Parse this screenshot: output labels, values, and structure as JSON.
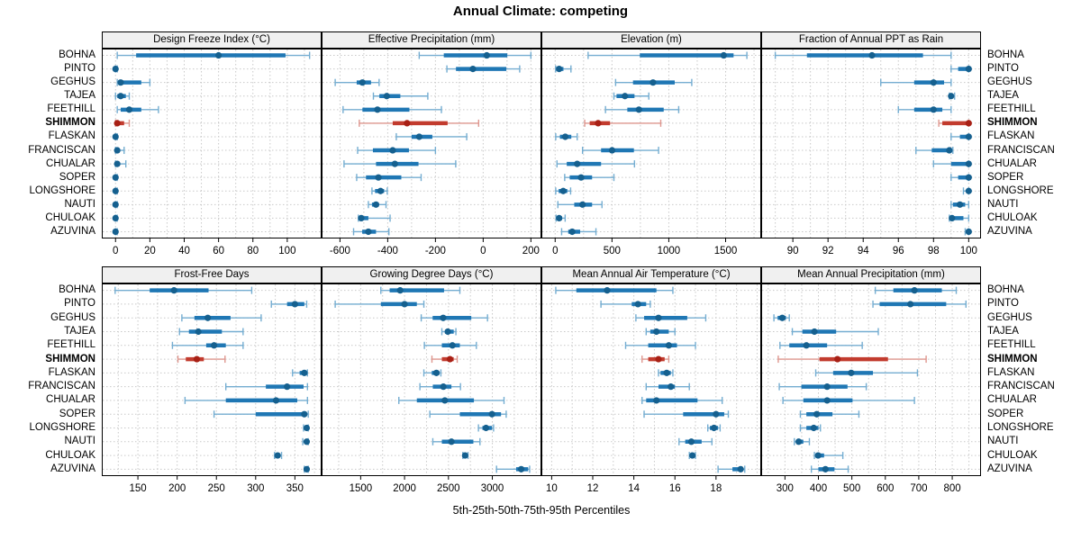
{
  "title": "Annual Climate: competing",
  "xlabel": "5th-25th-50th-75th-95th Percentiles",
  "highlight_site": "SHIMMON",
  "sites": [
    "BOHNA",
    "PINTO",
    "GEGHUS",
    "TAJEA",
    "FEETHILL",
    "SHIMMON",
    "FLASKAN",
    "FRANCISCAN",
    "CHUALAR",
    "SOPER",
    "LONGSHORE",
    "NAUTI",
    "CHULOAK",
    "AZUVINA"
  ],
  "colors": {
    "blue_median": "#15608f",
    "blue_iqr": "#1f77b4",
    "blue_range": "#74add1",
    "red_median": "#a82015",
    "red_iqr": "#c23b2e",
    "red_range": "#de968e",
    "grid": "#c9c9c9",
    "panel_header_bg": "#f0f0f0",
    "border": "#000000"
  },
  "chart_data": {
    "type": "dot-interval",
    "percentiles": [
      "5th",
      "25th",
      "50th",
      "75th",
      "95th"
    ],
    "layout": {
      "rows": 2,
      "cols": 4,
      "grid": "dashed",
      "legend": "none"
    },
    "panels": [
      {
        "title": "Design Freeze Index (°C)",
        "xlim": [
          -8,
          120
        ],
        "ticks": [
          0,
          20,
          40,
          60,
          80,
          100
        ],
        "values": [
          [
            1,
            12,
            60,
            99,
            113
          ],
          [
            0,
            0,
            0,
            0,
            1
          ],
          [
            1,
            2,
            3,
            15,
            20
          ],
          [
            0,
            1,
            3,
            6,
            8
          ],
          [
            1,
            3,
            8,
            15,
            25
          ],
          [
            0,
            0,
            1,
            5,
            8
          ],
          [
            0,
            0,
            0,
            0,
            1
          ],
          [
            0,
            0,
            1,
            2,
            5
          ],
          [
            0,
            0,
            1,
            2,
            6
          ],
          [
            0,
            0,
            0,
            0,
            1
          ],
          [
            0,
            0,
            0,
            0,
            1
          ],
          [
            0,
            0,
            0,
            0,
            1
          ],
          [
            0,
            0,
            0,
            0,
            1
          ],
          [
            0,
            0,
            0,
            0,
            1
          ]
        ]
      },
      {
        "title": "Effective Precipitation (mm)",
        "xlim": [
          -677,
          244
        ],
        "ticks": [
          -600,
          -400,
          -200,
          0,
          200
        ],
        "values": [
          [
            -268,
            -165,
            15,
            101,
            200
          ],
          [
            -152,
            -114,
            -43,
            97,
            153
          ],
          [
            -620,
            -530,
            -506,
            -470,
            -436
          ],
          [
            -460,
            -435,
            -404,
            -347,
            -232
          ],
          [
            -587,
            -506,
            -443,
            -309,
            -175
          ],
          [
            -519,
            -379,
            -319,
            -149,
            -19
          ],
          [
            -364,
            -300,
            -268,
            -213,
            -69
          ],
          [
            -526,
            -462,
            -379,
            -311,
            -200
          ],
          [
            -583,
            -449,
            -370,
            -271,
            -115
          ],
          [
            -530,
            -491,
            -439,
            -343,
            -260
          ],
          [
            -466,
            -453,
            -430,
            -415,
            -402
          ],
          [
            -481,
            -466,
            -449,
            -437,
            -407
          ],
          [
            -523,
            -518,
            -511,
            -481,
            -390
          ],
          [
            -543,
            -507,
            -481,
            -449,
            -395
          ]
        ]
      },
      {
        "title": "Elevation (m)",
        "xlim": [
          -121,
          1813
        ],
        "ticks": [
          0,
          500,
          1000,
          1500
        ],
        "values": [
          [
            290,
            745,
            1483,
            1570,
            1687
          ],
          [
            4,
            10,
            35,
            73,
            139
          ],
          [
            532,
            685,
            861,
            1052,
            1202
          ],
          [
            517,
            540,
            614,
            698,
            824
          ],
          [
            443,
            635,
            737,
            955,
            1087
          ],
          [
            260,
            304,
            378,
            483,
            929
          ],
          [
            5,
            42,
            89,
            142,
            194
          ],
          [
            241,
            404,
            501,
            693,
            910
          ],
          [
            16,
            102,
            194,
            404,
            698
          ],
          [
            84,
            128,
            228,
            325,
            517
          ],
          [
            5,
            31,
            71,
            107,
            136
          ],
          [
            24,
            168,
            241,
            325,
            412
          ],
          [
            8,
            15,
            35,
            60,
            88
          ],
          [
            57,
            115,
            150,
            220,
            359
          ]
        ]
      },
      {
        "title": "Fraction of Annual PPT as Rain",
        "xlim": [
          88.2,
          100.7
        ],
        "ticks": [
          90,
          92,
          94,
          96,
          98,
          100
        ],
        "values": [
          [
            89,
            90.8,
            94.5,
            97.4,
            99
          ],
          [
            99,
            99.4,
            100,
            100,
            100
          ],
          [
            95,
            96.9,
            98,
            98.6,
            99
          ],
          [
            98.9,
            99,
            99,
            99.1,
            99.2
          ],
          [
            96,
            96.9,
            98,
            98.5,
            99
          ],
          [
            98.3,
            98.5,
            100,
            100,
            100
          ],
          [
            99,
            99.5,
            100,
            100,
            100
          ],
          [
            97,
            97.9,
            98.9,
            99,
            99.1
          ],
          [
            98,
            99,
            100,
            100,
            100
          ],
          [
            99,
            99.4,
            100,
            100,
            100
          ],
          [
            99.7,
            99.9,
            100,
            100,
            100
          ],
          [
            99,
            99.1,
            99.5,
            99.8,
            100
          ],
          [
            98.9,
            99,
            99.05,
            99.7,
            100
          ],
          [
            99.8,
            99.9,
            100,
            100,
            100
          ]
        ]
      },
      {
        "title": "Frost-Free Days",
        "xlim": [
          104,
          384
        ],
        "ticks": [
          150,
          200,
          250,
          300,
          350
        ],
        "values": [
          [
            121,
            165,
            196,
            240,
            295
          ],
          [
            320,
            340,
            350,
            362,
            365
          ],
          [
            206,
            222,
            239,
            268,
            307
          ],
          [
            203,
            215,
            227,
            257,
            284
          ],
          [
            194,
            237,
            247,
            262,
            284
          ],
          [
            201,
            211,
            225,
            234,
            261
          ],
          [
            347,
            356,
            362,
            365,
            366
          ],
          [
            262,
            313,
            340,
            361,
            366
          ],
          [
            210,
            262,
            326,
            353,
            366
          ],
          [
            247,
            300,
            362,
            365,
            367
          ],
          [
            361,
            363,
            365,
            366,
            367
          ],
          [
            360,
            363,
            365,
            366,
            367
          ],
          [
            324,
            326,
            328,
            330,
            333
          ],
          [
            362,
            364,
            365,
            366,
            367
          ]
        ]
      },
      {
        "title": "Growing Degree Days (°C)",
        "xlim": [
          1055,
          3559
        ],
        "ticks": [
          1500,
          2000,
          2500,
          3000
        ],
        "values": [
          [
            1730,
            1830,
            1950,
            2450,
            2630
          ],
          [
            1210,
            1730,
            2000,
            2140,
            2220
          ],
          [
            2190,
            2320,
            2440,
            2760,
            2945
          ],
          [
            2425,
            2460,
            2493,
            2560,
            2585
          ],
          [
            2226,
            2425,
            2545,
            2630,
            2818
          ],
          [
            2312,
            2425,
            2517,
            2560,
            2600
          ],
          [
            2220,
            2310,
            2363,
            2397,
            2414
          ],
          [
            2175,
            2322,
            2442,
            2534,
            2637
          ],
          [
            1935,
            2140,
            2459,
            2790,
            3133
          ],
          [
            2288,
            2630,
            2996,
            3099,
            3158
          ],
          [
            2842,
            2887,
            2928,
            2996,
            3014
          ],
          [
            2322,
            2425,
            2534,
            2784,
            2859
          ],
          [
            2664,
            2680,
            2690,
            2702,
            2723
          ],
          [
            3048,
            3271,
            3329,
            3408,
            3425
          ]
        ]
      },
      {
        "title": "Mean Annual Air Temperature (°C)",
        "xlim": [
          9.5,
          20.2
        ],
        "ticks": [
          10,
          12,
          14,
          16,
          18
        ],
        "values": [
          [
            10.2,
            11.2,
            12.7,
            15.1,
            15.9
          ],
          [
            12.4,
            13.9,
            14.2,
            14.6,
            14.8
          ],
          [
            14.1,
            14.5,
            15.2,
            16.6,
            17.5
          ],
          [
            14.6,
            14.8,
            15.1,
            15.7,
            16.0
          ],
          [
            13.6,
            14.7,
            15.7,
            16.1,
            17.0
          ],
          [
            14.4,
            14.7,
            15.2,
            15.5,
            15.7
          ],
          [
            15.2,
            15.3,
            15.6,
            15.8,
            15.9
          ],
          [
            14.6,
            15.2,
            15.8,
            16.0,
            16.7
          ],
          [
            14.4,
            14.6,
            15.1,
            17.1,
            18.3
          ],
          [
            14.5,
            16.4,
            18.0,
            18.4,
            18.6
          ],
          [
            17.6,
            17.7,
            17.9,
            18.1,
            18.2
          ],
          [
            16.2,
            16.5,
            16.8,
            17.3,
            17.8
          ],
          [
            16.7,
            16.8,
            16.85,
            16.9,
            17.0
          ],
          [
            18.1,
            18.8,
            19.2,
            19.3,
            19.4
          ]
        ]
      },
      {
        "title": "Mean Annual Precipitation (mm)",
        "xlim": [
          229,
          886
        ],
        "ticks": [
          300,
          400,
          500,
          600,
          700,
          800
        ],
        "values": [
          [
            570,
            624,
            687,
            769,
            812
          ],
          [
            563,
            583,
            675,
            782,
            841
          ],
          [
            267,
            278,
            292,
            303,
            313
          ],
          [
            322,
            352,
            388,
            453,
            579
          ],
          [
            285,
            313,
            364,
            426,
            531
          ],
          [
            280,
            403,
            457,
            608,
            722
          ],
          [
            392,
            444,
            498,
            563,
            696
          ],
          [
            283,
            349,
            426,
            487,
            543
          ],
          [
            294,
            355,
            426,
            502,
            687
          ],
          [
            346,
            364,
            395,
            442,
            521
          ],
          [
            346,
            364,
            386,
            400,
            406
          ],
          [
            328,
            334,
            341,
            355,
            373
          ],
          [
            388,
            391,
            399,
            417,
            473
          ],
          [
            379,
            400,
            421,
            448,
            489
          ]
        ]
      }
    ]
  }
}
